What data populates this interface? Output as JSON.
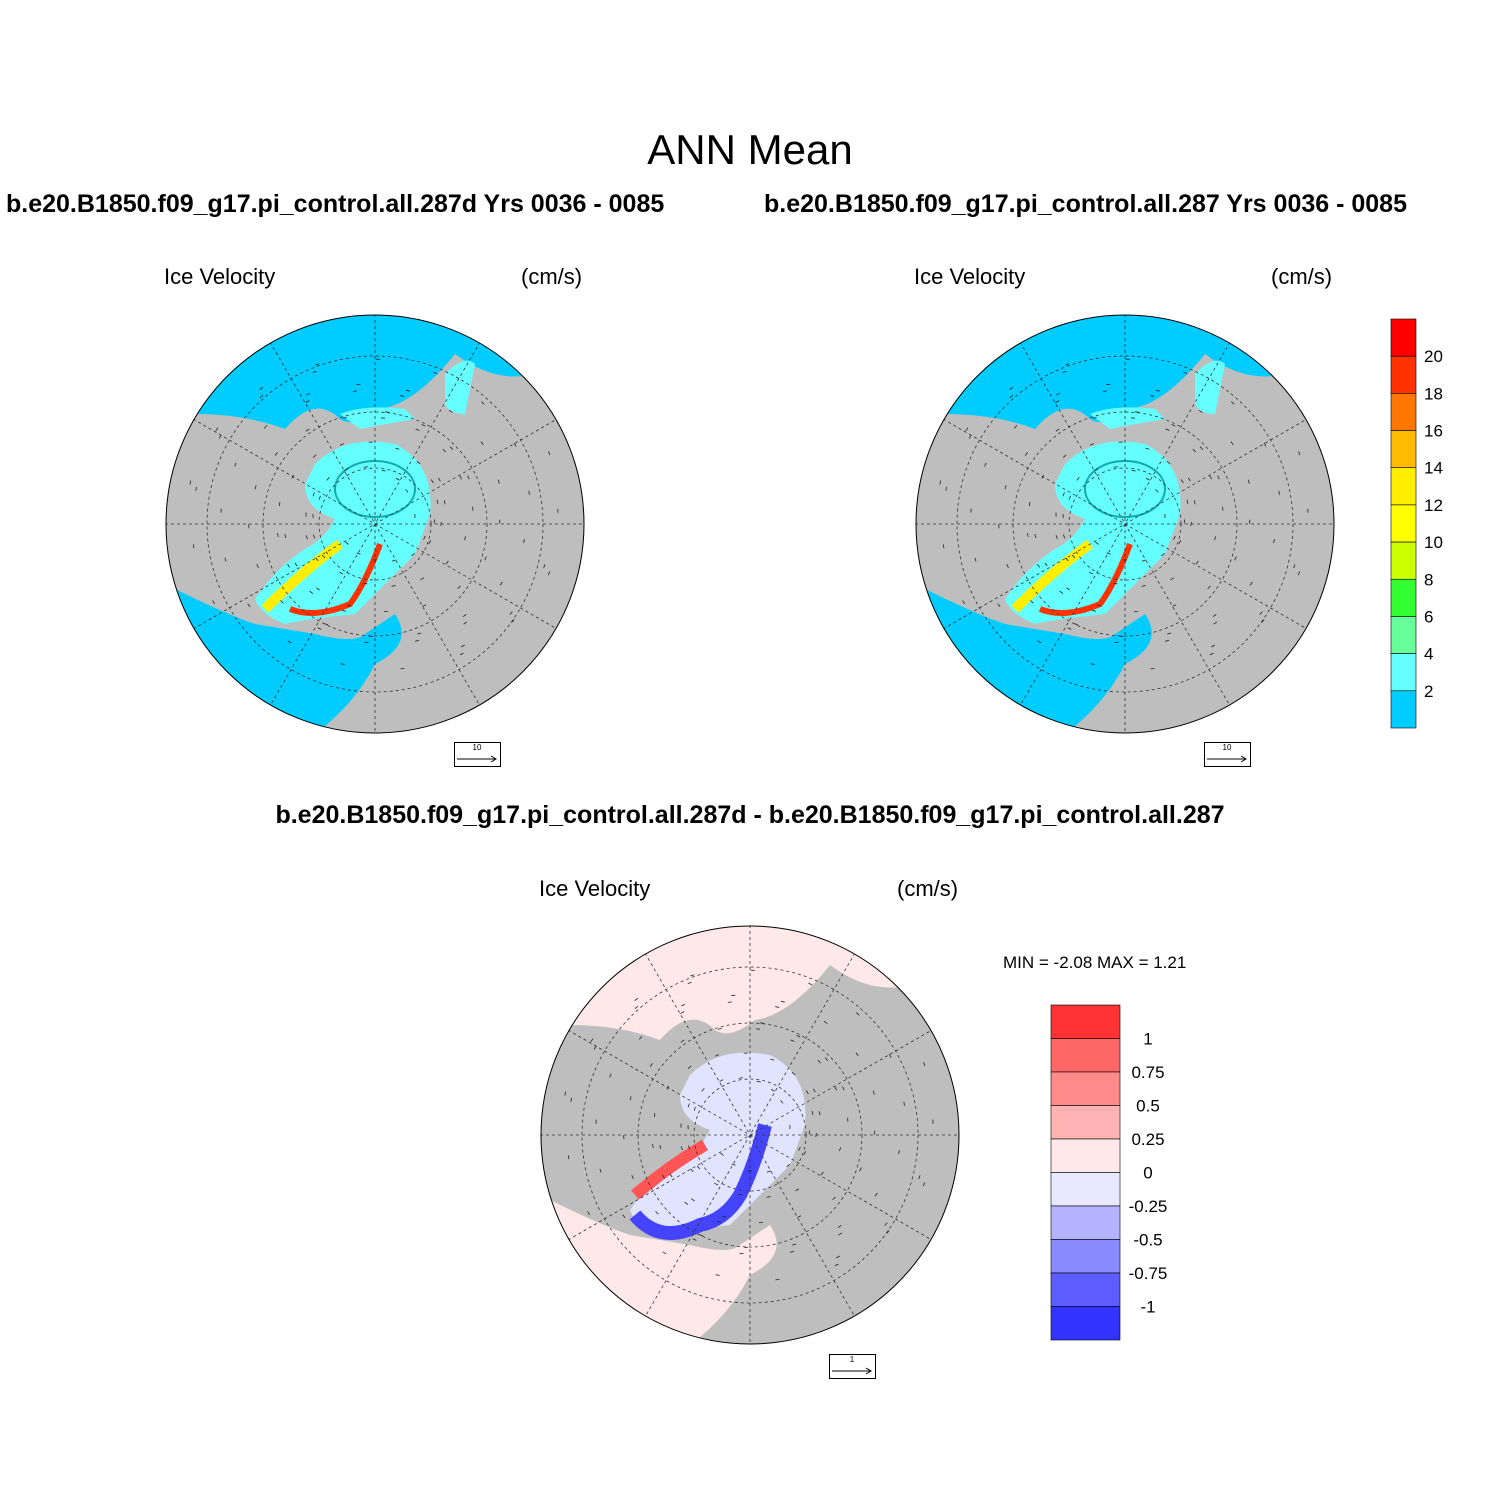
{
  "main_title": "ANN Mean",
  "panels": [
    {
      "case_title": "b.e20.B1850.f09_g17.pi_control.all.287d  Yrs 0036 - 0085",
      "variable": "Ice Velocity",
      "units": "(cm/s)",
      "ref_vector": "10"
    },
    {
      "case_title": "b.e20.B1850.f09_g17.pi_control.all.287  Yrs 0036 - 0085",
      "variable": "Ice Velocity",
      "units": "(cm/s)",
      "ref_vector": "10"
    }
  ],
  "diff_panel": {
    "title": "b.e20.B1850.f09_g17.pi_control.all.287d - b.e20.B1850.f09_g17.pi_control.all.287",
    "variable": "Ice Velocity",
    "units": "(cm/s)",
    "ref_vector": "1",
    "minmax": "MIN =  -2.08 MAX =   1.21"
  },
  "colorbar_main": {
    "labels": [
      "20",
      "18",
      "16",
      "14",
      "12",
      "10",
      "8",
      "6",
      "4",
      "2"
    ],
    "colors": [
      "#ff0000",
      "#ff3300",
      "#ff7700",
      "#ffbb00",
      "#ffee00",
      "#ffff00",
      "#ccff00",
      "#33ff33",
      "#66ff99",
      "#66ffff",
      "#00ccff"
    ]
  },
  "colorbar_diff": {
    "labels": [
      "1",
      "0.75",
      "0.5",
      "0.25",
      "0",
      "-0.25",
      "-0.5",
      "-0.75",
      "-1"
    ],
    "colors": [
      "#ff3333",
      "#ff6666",
      "#ff8a8a",
      "#ffb3b3",
      "#ffe8e8",
      "#e8e8ff",
      "#b3b3ff",
      "#8a8aff",
      "#5c5cff",
      "#3333ff"
    ]
  },
  "colors": {
    "land": "#bebebe",
    "ocean_main": "#00ccff",
    "ocean_diff": "#ffe8e8",
    "ice_main": "#66ffff",
    "ice_diff": "#e0e4ff"
  }
}
